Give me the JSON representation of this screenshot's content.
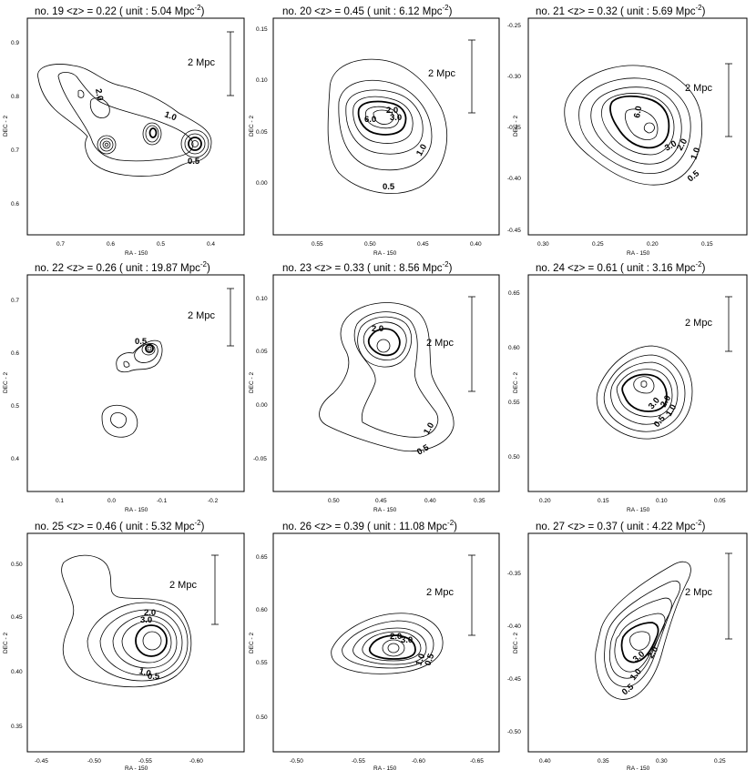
{
  "axis_labels": {
    "x": "RA - 150",
    "y": "DEC - 2"
  },
  "scale_label": "2 Mpc",
  "panels": [
    {
      "title": "no. 19  <z> = 0.22  ( unit : 5.04 Mpc",
      "sup": "-2",
      "xticks": [
        "0.7",
        "0.6",
        "0.5",
        "0.4"
      ],
      "yticks": [
        "0.9",
        "0.8",
        "0.7",
        "0.6"
      ],
      "labels": [
        "2.0",
        "1.0",
        "0.5"
      ]
    },
    {
      "title": "no. 20  <z> = 0.45  ( unit : 6.12 Mpc",
      "sup": "-2",
      "xticks": [
        "0.55",
        "0.50",
        "0.45",
        "0.40"
      ],
      "yticks": [
        "0.15",
        "0.10",
        "0.05",
        "0.00"
      ],
      "labels": [
        "2.0",
        "6.0",
        "3.0",
        "1.0",
        "0.5"
      ]
    },
    {
      "title": "no. 21  <z> = 0.32  ( unit : 5.69 Mpc",
      "sup": "-2",
      "xticks": [
        "0.30",
        "0.25",
        "0.20",
        "0.15"
      ],
      "yticks": [
        "-0.25",
        "-0.30",
        "-0.35",
        "-0.40",
        "-0.45"
      ],
      "labels": [
        "6.0",
        "3.0",
        "2.0",
        "1.0",
        "0.5"
      ]
    },
    {
      "title": "no. 22  <z> = 0.26  ( unit : 19.87 Mpc",
      "sup": "-2",
      "xticks": [
        "0.1",
        "0.0",
        "-0.1",
        "-0.2"
      ],
      "yticks": [
        "0.7",
        "0.6",
        "0.5",
        "0.4"
      ],
      "labels": [
        "0.5"
      ]
    },
    {
      "title": "no. 23  <z> = 0.33  ( unit : 8.56 Mpc",
      "sup": "-2",
      "xticks": [
        "0.50",
        "0.45",
        "0.40",
        "0.35"
      ],
      "yticks": [
        "0.10",
        "0.05",
        "0.00",
        "-0.05"
      ],
      "labels": [
        "2.0",
        "1.0",
        "0.5"
      ]
    },
    {
      "title": "no. 24  <z> = 0.61  ( unit : 3.16 Mpc",
      "sup": "-2",
      "xticks": [
        "0.20",
        "0.15",
        "0.10",
        "0.05"
      ],
      "yticks": [
        "0.65",
        "0.60",
        "0.55",
        "0.50"
      ],
      "labels": [
        "3.0",
        "2.0",
        "1.0",
        "0.5"
      ]
    },
    {
      "title": "no. 25  <z> = 0.46  ( unit : 5.32 Mpc",
      "sup": "-2",
      "xticks": [
        "-0.45",
        "-0.50",
        "-0.55",
        "-0.60"
      ],
      "yticks": [
        "0.50",
        "0.45",
        "0.40",
        "0.35"
      ],
      "labels": [
        "2.0",
        "3.0",
        "1.0",
        "0.5"
      ]
    },
    {
      "title": "no. 26  <z> = 0.39  ( unit : 11.08 Mpc",
      "sup": "-2",
      "xticks": [
        "-0.50",
        "-0.55",
        "-0.60",
        "-0.65"
      ],
      "yticks": [
        "0.65",
        "0.60",
        "0.55",
        "0.50"
      ],
      "labels": [
        "2.0",
        "3.0",
        "1.0",
        "0.5"
      ]
    },
    {
      "title": "no. 27  <z> = 0.37  ( unit : 4.22 Mpc",
      "sup": "-2",
      "xticks": [
        "0.40",
        "0.35",
        "0.30",
        "0.25"
      ],
      "yticks": [
        "-0.35",
        "-0.40",
        "-0.45",
        "-0.50"
      ],
      "labels": [
        "3.0",
        "2.0",
        "1.0",
        "0.5"
      ]
    }
  ]
}
